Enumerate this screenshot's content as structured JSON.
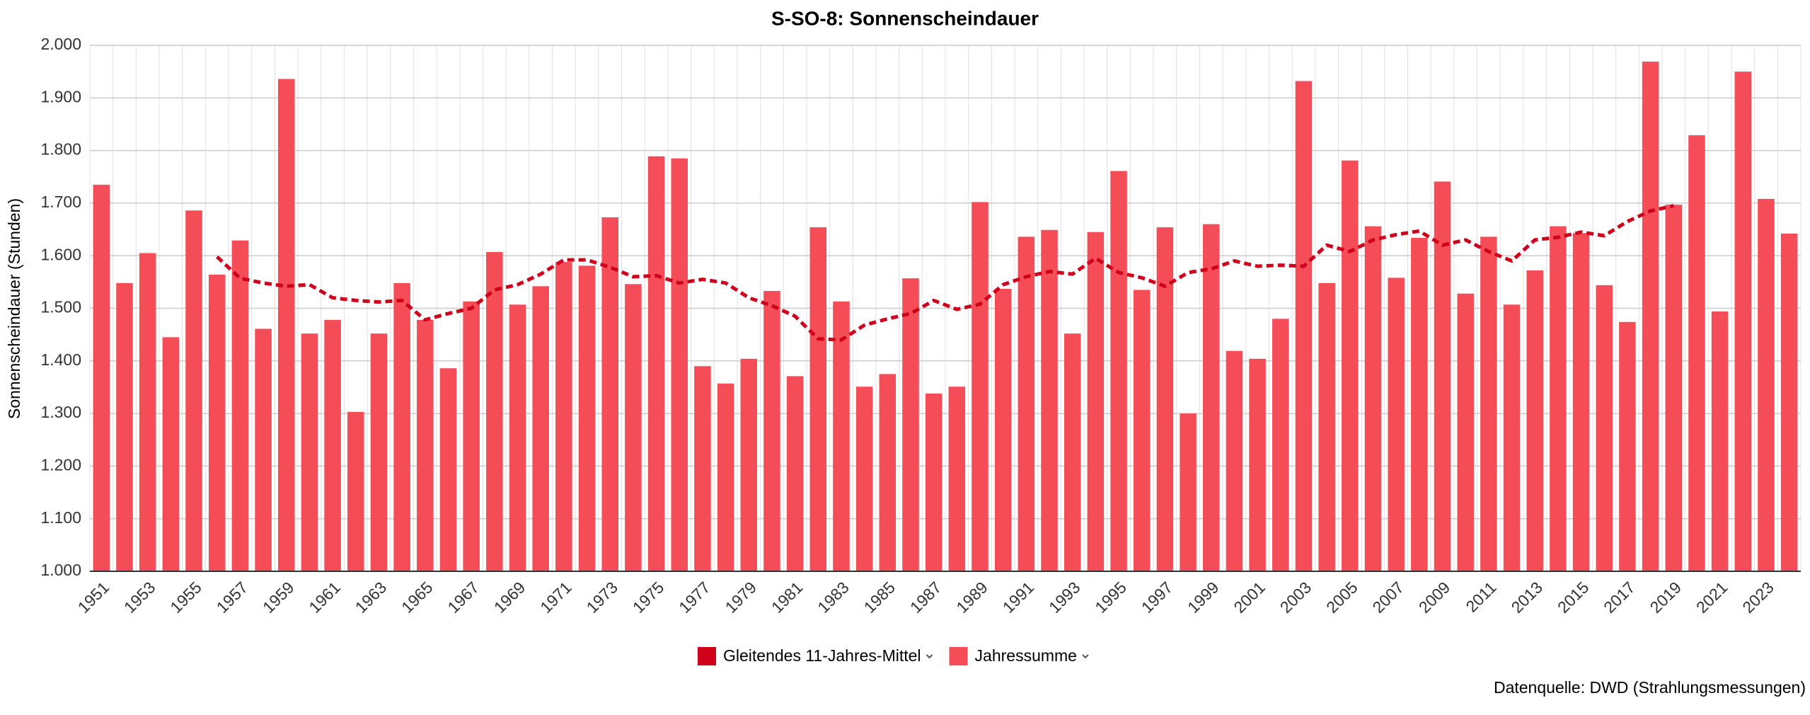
{
  "chart_data": {
    "type": "bar",
    "title": "S-SO-8: Sonnenscheindauer",
    "y_label": "Sonnenscheindauer (Stunden)",
    "source": "Datenquelle: DWD (Strahlungsmessungen)",
    "categories": [
      "1951",
      null,
      "1953",
      null,
      "1955",
      null,
      "1957",
      null,
      "1959",
      null,
      "1961",
      null,
      "1963",
      null,
      "1965",
      null,
      "1967",
      null,
      "1969",
      null,
      "1971",
      null,
      "1973",
      null,
      "1975",
      null,
      "1977",
      null,
      "1979",
      null,
      "1981",
      null,
      "1983",
      null,
      "1985",
      null,
      "1987",
      null,
      "1989",
      null,
      "1991",
      null,
      "1993",
      null,
      "1995",
      null,
      "1997",
      null,
      "1999",
      null,
      "2001",
      null,
      "2003",
      null,
      "2005",
      null,
      "2007",
      null,
      "2009",
      null,
      "2011",
      null,
      "2013",
      null,
      "2015",
      null,
      "2017",
      null,
      "2019",
      null,
      "2021",
      null,
      "2023",
      null
    ],
    "series": [
      {
        "name": "Gleitendes 11-Jahres-Mittel",
        "type": "line",
        "color": "#d0021b",
        "values": [
          null,
          null,
          null,
          null,
          null,
          1598,
          1557,
          1548,
          1542,
          1545,
          1520,
          1515,
          1512,
          1515,
          1478,
          1490,
          1500,
          1535,
          1545,
          1565,
          1592,
          1592,
          1578,
          1560,
          1562,
          1548,
          1555,
          1548,
          1520,
          1505,
          1485,
          1442,
          1440,
          1468,
          1480,
          1490,
          1515,
          1498,
          1508,
          1545,
          1560,
          1570,
          1565,
          1595,
          1568,
          1558,
          1542,
          1568,
          1575,
          1590,
          1580,
          1582,
          1580,
          1620,
          1608,
          1630,
          1640,
          1647,
          1620,
          1630,
          1608,
          1590,
          1630,
          1635,
          1645,
          1638,
          1665,
          1685,
          1695,
          null,
          null,
          null,
          null,
          null
        ]
      },
      {
        "name": "Jahressumme",
        "type": "bar",
        "color": "#f54d58",
        "values": [
          1735,
          1548,
          1605,
          1445,
          1686,
          1564,
          1629,
          1461,
          1936,
          1452,
          1478,
          1303,
          1452,
          1548,
          1478,
          1386,
          1513,
          1607,
          1507,
          1542,
          1588,
          1581,
          1673,
          1546,
          1789,
          1785,
          1390,
          1357,
          1404,
          1533,
          1371,
          1654,
          1513,
          1351,
          1375,
          1557,
          1338,
          1351,
          1702,
          1537,
          1636,
          1649,
          1452,
          1645,
          1761,
          1535,
          1654,
          1300,
          1660,
          1419,
          1404,
          1480,
          1932,
          1548,
          1781,
          1656,
          1558,
          1634,
          1741,
          1528,
          1636,
          1507,
          1572,
          1656,
          1643,
          1544,
          1474,
          1969,
          1697,
          1829,
          1494,
          1950,
          1708,
          1642
        ]
      }
    ],
    "ylim": [
      1000,
      2000
    ],
    "yticks": [
      {
        "value": 1000,
        "label": "1.000"
      },
      {
        "value": 1100,
        "label": "1.100"
      },
      {
        "value": 1200,
        "label": "1.200"
      },
      {
        "value": 1300,
        "label": "1.300"
      },
      {
        "value": 1400,
        "label": "1.400"
      },
      {
        "value": 1500,
        "label": "1.500"
      },
      {
        "value": 1600,
        "label": "1.600"
      },
      {
        "value": 1700,
        "label": "1.700"
      },
      {
        "value": 1800,
        "label": "1.800"
      },
      {
        "value": 1900,
        "label": "1.900"
      },
      {
        "value": 2000,
        "label": "2.000"
      }
    ],
    "grid": true
  }
}
